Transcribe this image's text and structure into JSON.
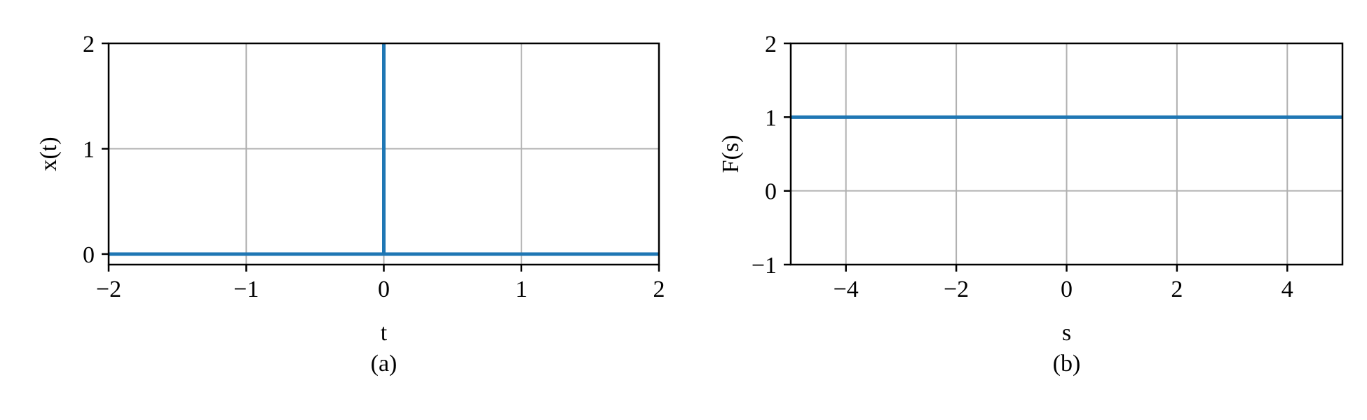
{
  "colors": {
    "line": "#1f77b4",
    "grid": "#b0b0b0",
    "axes": "#000000"
  },
  "chart_data": [
    {
      "type": "line",
      "xlabel": "t",
      "ylabel": "x(t)",
      "caption": "(a)",
      "xlim": [
        -2,
        2
      ],
      "ylim": [
        -0.1,
        2
      ],
      "xticks": [
        -2,
        -1,
        0,
        1,
        2
      ],
      "xtick_labels": [
        "−2",
        "−1",
        "0",
        "1",
        "2"
      ],
      "yticks": [
        0,
        1,
        2
      ],
      "ytick_labels": [
        "0",
        "1",
        "2"
      ],
      "grid": true,
      "series": [
        {
          "x": [
            -2,
            0,
            0,
            0,
            2
          ],
          "y": [
            0,
            0,
            2,
            0,
            0
          ]
        }
      ]
    },
    {
      "type": "line",
      "xlabel": "s",
      "ylabel": "F(s)",
      "caption": "(b)",
      "xlim": [
        -5,
        5
      ],
      "ylim": [
        -1,
        2
      ],
      "xticks": [
        -4,
        -2,
        0,
        2,
        4
      ],
      "xtick_labels": [
        "−4",
        "−2",
        "0",
        "2",
        "4"
      ],
      "yticks": [
        -1,
        0,
        1,
        2
      ],
      "ytick_labels": [
        "−1",
        "0",
        "1",
        "2"
      ],
      "grid": true,
      "series": [
        {
          "x": [
            -5,
            5
          ],
          "y": [
            1,
            1
          ]
        }
      ]
    }
  ]
}
